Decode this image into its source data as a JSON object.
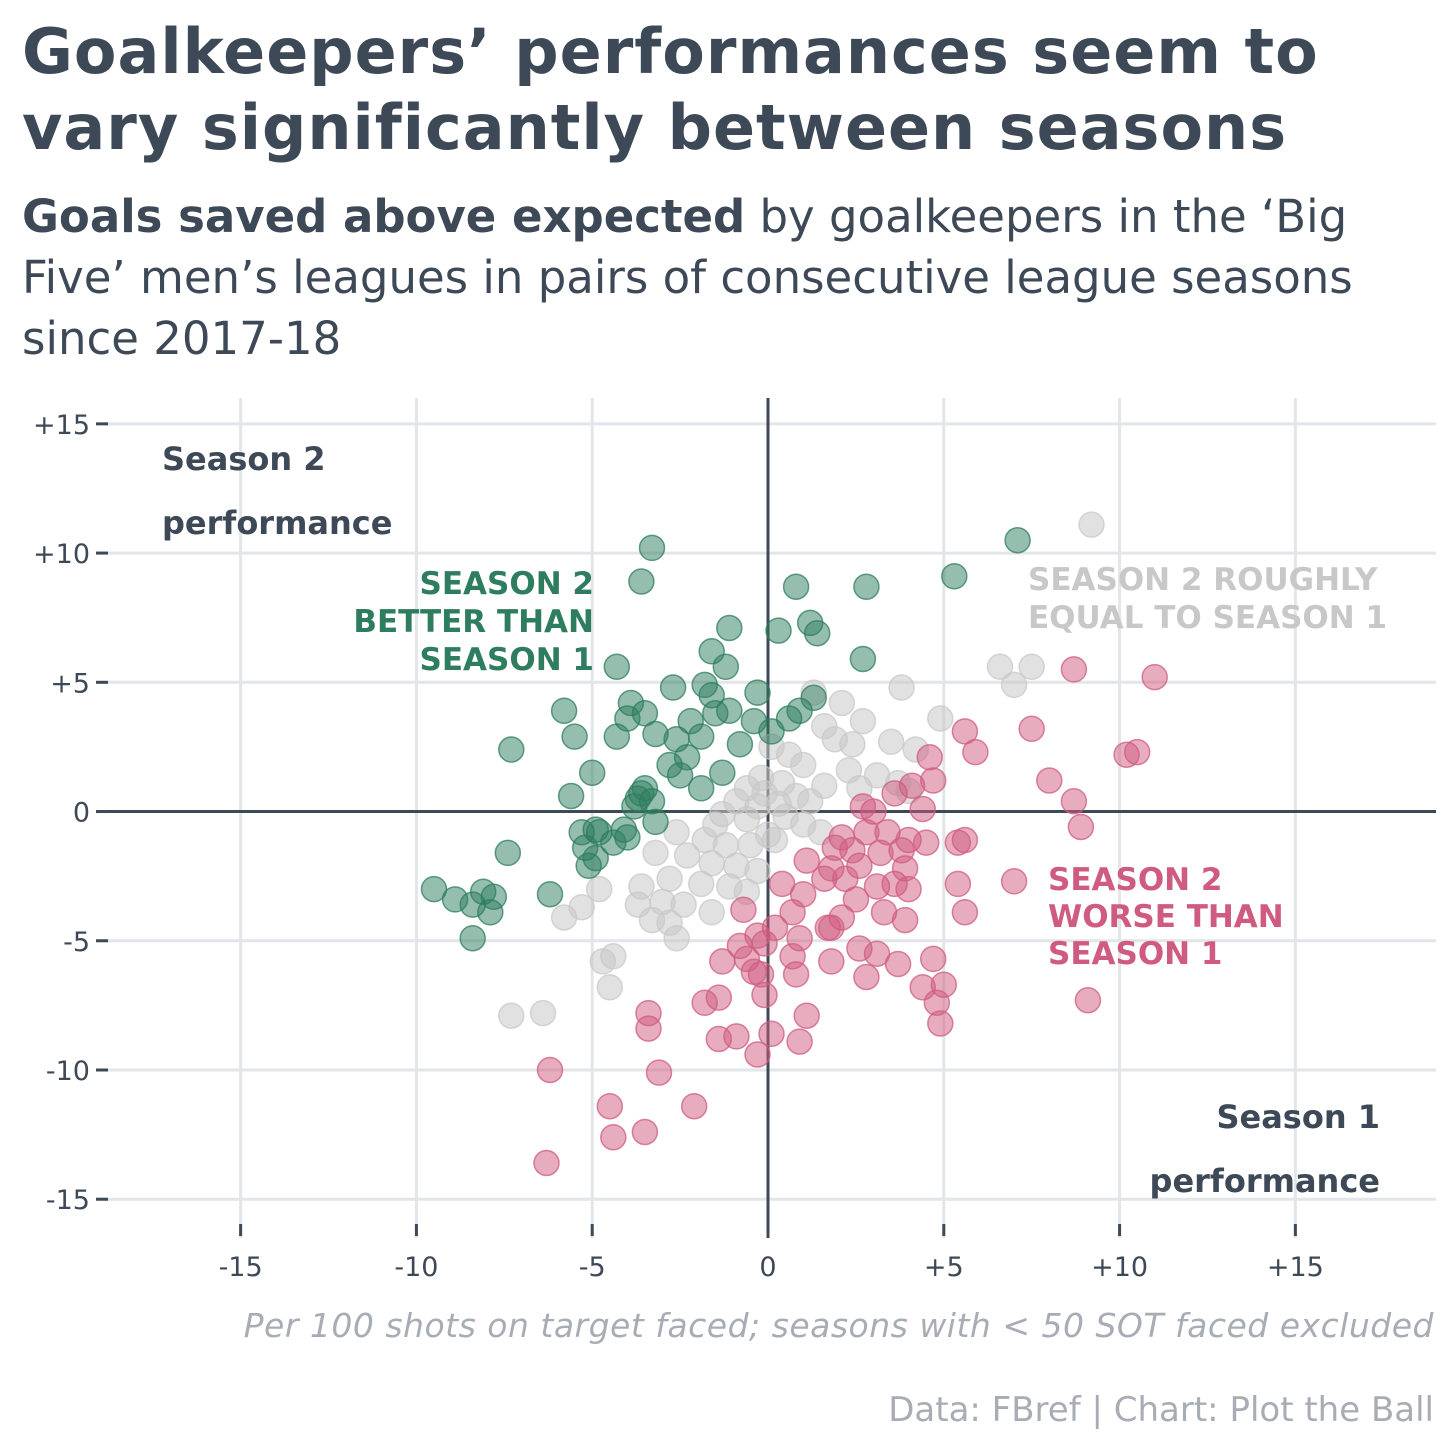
{
  "title": "Goalkeepers’ performances seem to vary significantly between seasons",
  "subtitle": {
    "bold": "Goals saved above expected",
    "rest": " by goalkeepers in the ‘Big Five’ men’s leagues in pairs of consecutive league seasons since 2017-18"
  },
  "footnote": "Per 100 shots on target faced; seasons with < 50 SOT faced excluded",
  "credit": "Data: FBref | Chart: Plot the Ball",
  "colors": {
    "better": "#2e7d5e",
    "worse": "#cf5b80",
    "equal": "#c8c8c8",
    "text": "#3d4957",
    "grid": "#e2e5e9",
    "muted": "#a8adb5"
  },
  "chart_data": {
    "type": "scatter",
    "xlim": [
      -19,
      19
    ],
    "ylim": [
      -16.5,
      16
    ],
    "x_ticks": [
      -15,
      -10,
      -5,
      0,
      5,
      10,
      15
    ],
    "x_tick_labels": [
      "-15",
      "-10",
      "-5",
      "0",
      "+5",
      "+10",
      "+15"
    ],
    "y_ticks": [
      15,
      10,
      5,
      0,
      -5,
      -10,
      -15
    ],
    "y_tick_labels": [
      "+15",
      "+10",
      "+5",
      "0",
      "-5",
      "-10",
      "-15"
    ],
    "grid": true,
    "axis_annotations": {
      "y": [
        "Season 2",
        "performance"
      ],
      "x": [
        "Season 1",
        "performance"
      ]
    },
    "series": [
      {
        "name": "SEASON 2 BETTER THAN SEASON 1",
        "label_lines": [
          "SEASON 2",
          "BETTER THAN",
          "SEASON 1"
        ],
        "color_key": "better",
        "points": [
          [
            -3.3,
            10.2
          ],
          [
            -3.6,
            8.9
          ],
          [
            0.8,
            8.7
          ],
          [
            2.8,
            8.7
          ],
          [
            5.3,
            9.1
          ],
          [
            7.1,
            10.5
          ],
          [
            -1.1,
            7.1
          ],
          [
            0.3,
            7.0
          ],
          [
            1.2,
            7.3
          ],
          [
            1.4,
            6.9
          ],
          [
            -1.6,
            6.2
          ],
          [
            -1.2,
            5.6
          ],
          [
            -4.3,
            5.6
          ],
          [
            2.7,
            5.9
          ],
          [
            -2.7,
            4.8
          ],
          [
            -1.8,
            4.9
          ],
          [
            -1.6,
            4.5
          ],
          [
            -0.3,
            4.6
          ],
          [
            -3.9,
            4.2
          ],
          [
            -5.8,
            3.9
          ],
          [
            -4.0,
            3.6
          ],
          [
            -3.5,
            3.8
          ],
          [
            -2.2,
            3.5
          ],
          [
            -1.5,
            3.8
          ],
          [
            -1.1,
            3.9
          ],
          [
            0.9,
            3.9
          ],
          [
            1.3,
            4.4
          ],
          [
            -5.5,
            2.9
          ],
          [
            -4.3,
            2.9
          ],
          [
            -3.2,
            3.0
          ],
          [
            -2.6,
            2.8
          ],
          [
            -1.9,
            2.9
          ],
          [
            -0.8,
            2.6
          ],
          [
            -0.4,
            3.5
          ],
          [
            0.1,
            3.1
          ],
          [
            0.6,
            3.6
          ],
          [
            -7.3,
            2.4
          ],
          [
            -2.8,
            1.8
          ],
          [
            -2.3,
            2.1
          ],
          [
            -5.0,
            1.5
          ],
          [
            -2.5,
            1.4
          ],
          [
            -1.3,
            1.5
          ],
          [
            -1.9,
            0.9
          ],
          [
            -5.6,
            0.6
          ],
          [
            -3.7,
            0.5
          ],
          [
            -3.3,
            0.4
          ],
          [
            -3.5,
            0.9
          ],
          [
            -3.8,
            0.2
          ],
          [
            -3.2,
            -0.4
          ],
          [
            -5.3,
            -0.8
          ],
          [
            -4.8,
            -0.8
          ],
          [
            -4.4,
            -1.2
          ],
          [
            -4.1,
            -0.7
          ],
          [
            -4.0,
            -1.0
          ],
          [
            -5.2,
            -1.4
          ],
          [
            -4.9,
            -1.8
          ],
          [
            -5.1,
            -2.1
          ],
          [
            -7.4,
            -1.6
          ],
          [
            -9.5,
            -3.0
          ],
          [
            -8.9,
            -3.4
          ],
          [
            -8.1,
            -3.1
          ],
          [
            -8.4,
            -3.6
          ],
          [
            -7.8,
            -3.3
          ],
          [
            -7.9,
            -3.9
          ],
          [
            -6.2,
            -3.2
          ],
          [
            -8.4,
            -4.9
          ],
          [
            -4.9,
            -0.7
          ],
          [
            -3.6,
            0.7
          ]
        ]
      },
      {
        "name": "SEASON 2 ROUGHLY EQUAL TO SEASON 1",
        "label_lines": [
          "SEASON 2 ROUGHLY",
          "EQUAL TO SEASON 1"
        ],
        "color_key": "equal",
        "points": [
          [
            9.2,
            11.1
          ],
          [
            6.6,
            5.6
          ],
          [
            7.5,
            5.6
          ],
          [
            7.0,
            4.9
          ],
          [
            3.8,
            4.8
          ],
          [
            1.3,
            4.6
          ],
          [
            2.1,
            4.2
          ],
          [
            4.9,
            3.6
          ],
          [
            2.7,
            3.5
          ],
          [
            1.6,
            3.3
          ],
          [
            1.9,
            2.8
          ],
          [
            2.4,
            2.6
          ],
          [
            3.5,
            2.7
          ],
          [
            4.2,
            2.4
          ],
          [
            0.6,
            2.2
          ],
          [
            0.1,
            2.5
          ],
          [
            1.0,
            1.8
          ],
          [
            2.3,
            1.6
          ],
          [
            3.1,
            1.4
          ],
          [
            0.4,
            1.1
          ],
          [
            -0.2,
            1.3
          ],
          [
            -0.6,
            0.9
          ],
          [
            1.6,
            1.0
          ],
          [
            2.6,
            0.9
          ],
          [
            3.7,
            1.1
          ],
          [
            4.0,
            0.8
          ],
          [
            -0.9,
            0.4
          ],
          [
            -0.3,
            0.2
          ],
          [
            0.3,
            0.3
          ],
          [
            0.8,
            0.6
          ],
          [
            1.2,
            0.4
          ],
          [
            -1.3,
            -0.1
          ],
          [
            -0.6,
            -0.3
          ],
          [
            0.5,
            -0.2
          ],
          [
            1.0,
            -0.5
          ],
          [
            1.5,
            -0.8
          ],
          [
            -2.6,
            -0.8
          ],
          [
            -1.8,
            -1.1
          ],
          [
            -1.2,
            -1.3
          ],
          [
            -0.5,
            -1.3
          ],
          [
            0.2,
            -1.1
          ],
          [
            -3.2,
            -1.6
          ],
          [
            -2.3,
            -1.7
          ],
          [
            -1.6,
            -2.0
          ],
          [
            -0.9,
            -2.1
          ],
          [
            -0.3,
            -2.3
          ],
          [
            -3.6,
            -2.9
          ],
          [
            -2.8,
            -2.6
          ],
          [
            -1.9,
            -2.8
          ],
          [
            -1.1,
            -2.9
          ],
          [
            -0.6,
            -3.1
          ],
          [
            -4.8,
            -3.0
          ],
          [
            -5.3,
            -3.7
          ],
          [
            -3.7,
            -3.6
          ],
          [
            -3.0,
            -3.5
          ],
          [
            -2.4,
            -3.6
          ],
          [
            -1.6,
            -3.9
          ],
          [
            -5.8,
            -4.1
          ],
          [
            -3.3,
            -4.2
          ],
          [
            -2.8,
            -4.3
          ],
          [
            -2.6,
            -4.9
          ],
          [
            -4.7,
            -5.8
          ],
          [
            -4.4,
            -5.6
          ],
          [
            -4.5,
            -6.8
          ],
          [
            -7.3,
            -7.9
          ],
          [
            -6.4,
            -7.8
          ],
          [
            -0.1,
            0.7
          ],
          [
            -1.5,
            -0.5
          ],
          [
            0.0,
            -0.9
          ]
        ]
      },
      {
        "name": "SEASON 2 WORSE THAN SEASON 1",
        "label_lines": [
          "SEASON 2",
          "WORSE THAN",
          "SEASON 1"
        ],
        "color_key": "worse",
        "points": [
          [
            11.0,
            5.2
          ],
          [
            8.7,
            5.5
          ],
          [
            7.5,
            3.2
          ],
          [
            5.6,
            3.1
          ],
          [
            5.9,
            2.3
          ],
          [
            10.2,
            2.2
          ],
          [
            10.5,
            2.3
          ],
          [
            4.6,
            2.1
          ],
          [
            4.7,
            1.2
          ],
          [
            4.1,
            1.0
          ],
          [
            8.0,
            1.2
          ],
          [
            3.6,
            0.7
          ],
          [
            8.7,
            0.4
          ],
          [
            2.7,
            0.2
          ],
          [
            3.0,
            0.0
          ],
          [
            4.4,
            0.1
          ],
          [
            8.9,
            -0.6
          ],
          [
            2.8,
            -0.8
          ],
          [
            3.4,
            -0.8
          ],
          [
            2.1,
            -1.0
          ],
          [
            4.0,
            -1.1
          ],
          [
            4.5,
            -1.2
          ],
          [
            5.4,
            -1.2
          ],
          [
            5.6,
            -1.1
          ],
          [
            1.9,
            -1.4
          ],
          [
            2.4,
            -1.5
          ],
          [
            3.2,
            -1.6
          ],
          [
            3.8,
            -1.5
          ],
          [
            1.1,
            -1.9
          ],
          [
            1.8,
            -2.2
          ],
          [
            2.6,
            -2.1
          ],
          [
            3.9,
            -2.2
          ],
          [
            1.6,
            -2.6
          ],
          [
            2.2,
            -2.6
          ],
          [
            3.6,
            -2.8
          ],
          [
            5.4,
            -2.8
          ],
          [
            7.0,
            -2.7
          ],
          [
            0.4,
            -2.8
          ],
          [
            1.0,
            -3.2
          ],
          [
            2.5,
            -3.4
          ],
          [
            3.1,
            -2.9
          ],
          [
            4.0,
            -3.0
          ],
          [
            5.6,
            -3.9
          ],
          [
            0.7,
            -3.9
          ],
          [
            3.3,
            -3.9
          ],
          [
            3.9,
            -4.2
          ],
          [
            2.1,
            -4.1
          ],
          [
            1.8,
            -4.5
          ],
          [
            1.7,
            -4.5
          ],
          [
            -0.7,
            -3.8
          ],
          [
            -0.3,
            -4.8
          ],
          [
            0.2,
            -4.5
          ],
          [
            0.9,
            -4.9
          ],
          [
            -0.8,
            -5.2
          ],
          [
            -0.1,
            -5.1
          ],
          [
            -0.6,
            -5.7
          ],
          [
            -1.3,
            -5.8
          ],
          [
            0.7,
            -5.6
          ],
          [
            1.8,
            -5.8
          ],
          [
            2.6,
            -5.3
          ],
          [
            3.1,
            -5.5
          ],
          [
            3.7,
            -5.9
          ],
          [
            4.7,
            -5.7
          ],
          [
            -0.4,
            -6.2
          ],
          [
            -0.2,
            -6.3
          ],
          [
            0.8,
            -6.3
          ],
          [
            2.8,
            -6.4
          ],
          [
            4.4,
            -6.8
          ],
          [
            5.0,
            -6.7
          ],
          [
            -1.4,
            -7.2
          ],
          [
            -1.8,
            -7.4
          ],
          [
            -0.1,
            -7.1
          ],
          [
            4.8,
            -7.4
          ],
          [
            9.1,
            -7.3
          ],
          [
            1.1,
            -7.9
          ],
          [
            4.9,
            -8.2
          ],
          [
            -3.4,
            -7.8
          ],
          [
            -3.4,
            -8.4
          ],
          [
            -0.9,
            -8.7
          ],
          [
            -1.4,
            -8.8
          ],
          [
            0.1,
            -8.6
          ],
          [
            0.9,
            -8.9
          ],
          [
            -0.3,
            -9.4
          ],
          [
            -6.2,
            -10.0
          ],
          [
            -3.1,
            -10.1
          ],
          [
            -2.1,
            -11.4
          ],
          [
            -4.5,
            -11.4
          ],
          [
            -4.4,
            -12.6
          ],
          [
            -3.5,
            -12.4
          ],
          [
            -6.3,
            -13.6
          ]
        ]
      }
    ]
  }
}
